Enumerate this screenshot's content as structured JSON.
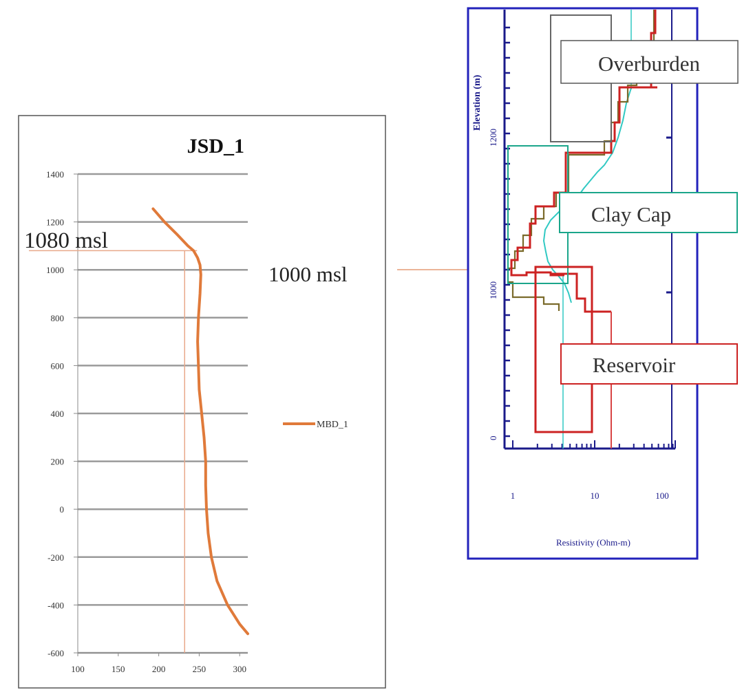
{
  "chart_data": [
    {
      "type": "line",
      "title": "JSD_1",
      "xlabel": "",
      "ylabel": "",
      "xlim": [
        100,
        310
      ],
      "ylim": [
        -600,
        1400
      ],
      "x_ticks": [
        "100",
        "150",
        "200",
        "250",
        "300"
      ],
      "y_ticks": [
        "1400",
        "1200",
        "1000",
        "800",
        "600",
        "400",
        "200",
        "0",
        "-200",
        "-400",
        "-600"
      ],
      "grid": "horizontal",
      "legend": "right",
      "series": [
        {
          "name": "MBD_1",
          "color": "#e07a3a",
          "points": [
            [
              193,
              1255
            ],
            [
              207,
              1200
            ],
            [
              222,
              1150
            ],
            [
              236,
              1100
            ],
            [
              243,
              1080
            ],
            [
              248,
              1050
            ],
            [
              251,
              1020
            ],
            [
              252,
              980
            ],
            [
              251,
              900
            ],
            [
              249,
              800
            ],
            [
              248,
              700
            ],
            [
              249,
              600
            ],
            [
              250,
              500
            ],
            [
              253,
              400
            ],
            [
              256,
              300
            ],
            [
              258,
              200
            ],
            [
              258,
              100
            ],
            [
              259,
              0
            ],
            [
              261,
              -100
            ],
            [
              265,
              -200
            ],
            [
              272,
              -300
            ],
            [
              285,
              -400
            ],
            [
              300,
              -480
            ],
            [
              310,
              -520
            ]
          ]
        }
      ],
      "annotations": [
        {
          "label": "1080 msl",
          "x": 232,
          "y": 1080
        }
      ]
    },
    {
      "type": "line",
      "xlabel": "Resistivity (Ohm-m)",
      "ylabel": "Elevation (m)",
      "x_scale": "log",
      "xlim": [
        1,
        100
      ],
      "x_ticks": [
        "1",
        "10",
        "100"
      ],
      "y_ticks": [
        "1200",
        "1000",
        "0"
      ],
      "boxes": [
        {
          "label": "Overburden",
          "color": "#666666"
        },
        {
          "label": "Clay Cap",
          "color": "#1aa58a"
        },
        {
          "label": "Reservoir",
          "color": "#cc2222"
        }
      ],
      "annotations": [
        {
          "label": "1000 msl"
        }
      ]
    }
  ],
  "colors": {
    "orange": "#e07a3a",
    "cyan": "#31c9c3",
    "red": "#cc2222",
    "green": "#1aa58a",
    "olive": "#7a6a2a",
    "frame_blue": "#2222bb"
  }
}
